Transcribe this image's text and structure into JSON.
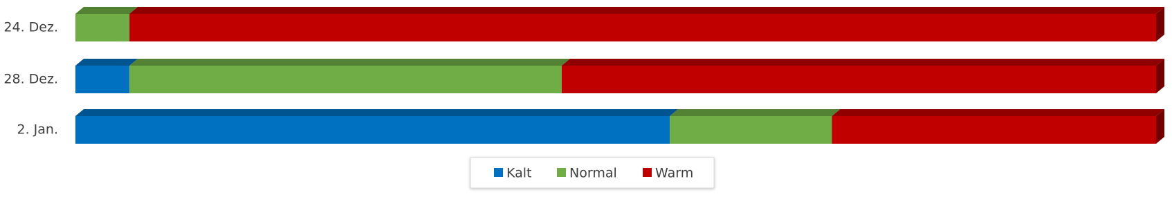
{
  "chart_data": {
    "type": "stacked-bar-3d-horizontal",
    "categories": [
      "24. Dez.",
      "28. Dez.",
      "2. Jan."
    ],
    "series": [
      {
        "name": "Kalt",
        "color": "#0070C0",
        "values": [
          0,
          5,
          55
        ]
      },
      {
        "name": "Normal",
        "color": "#70AD47",
        "values": [
          5,
          40,
          15
        ]
      },
      {
        "name": "Warm",
        "color": "#C00000",
        "values": [
          95,
          55,
          30
        ]
      }
    ],
    "xlim": [
      0,
      100
    ],
    "legend": "bottom"
  }
}
